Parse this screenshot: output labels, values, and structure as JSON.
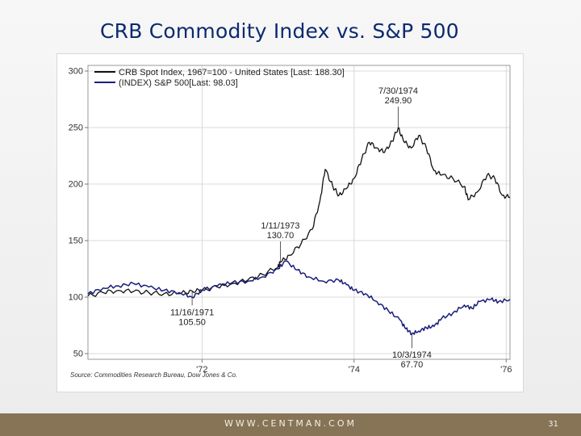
{
  "slide": {
    "title": "CRB Commodity Index vs. S&P 500",
    "footer_url": "WWW.CENTMAN.COM",
    "page_number": "31"
  },
  "colors": {
    "crb_line": "#111111",
    "sp500_line": "#1a1f7a",
    "title": "#0b2a6f",
    "footer_bar": "#877457"
  },
  "chart_data": {
    "type": "line",
    "x_ticks": [
      "'72",
      "'74",
      "'76"
    ],
    "x_tick_values": [
      1972.0,
      1974.0,
      1976.0
    ],
    "xlim": [
      1970.5,
      1976.05
    ],
    "ylim": [
      45,
      305
    ],
    "y_ticks": [
      50,
      100,
      150,
      200,
      250,
      300
    ],
    "grid": true,
    "legend_position": "top-left",
    "source": "Source: Commodities Research Bureau, Dow Jones & Co.",
    "series": [
      {
        "name": "CRB Spot Index, 1967=100 - United States [Last: 188.30]",
        "color": "#111111",
        "points": [
          [
            1970.5,
            101
          ],
          [
            1970.7,
            104
          ],
          [
            1970.9,
            106
          ],
          [
            1971.1,
            105
          ],
          [
            1971.3,
            104
          ],
          [
            1971.5,
            103
          ],
          [
            1971.7,
            103
          ],
          [
            1971.87,
            105.5
          ],
          [
            1972.0,
            106
          ],
          [
            1972.2,
            109
          ],
          [
            1972.4,
            112
          ],
          [
            1972.6,
            115
          ],
          [
            1972.8,
            120
          ],
          [
            1973.0,
            127
          ],
          [
            1973.03,
            130.7
          ],
          [
            1973.15,
            137
          ],
          [
            1973.3,
            147
          ],
          [
            1973.45,
            160
          ],
          [
            1973.55,
            185
          ],
          [
            1973.62,
            213
          ],
          [
            1973.72,
            198
          ],
          [
            1973.8,
            190
          ],
          [
            1973.9,
            196
          ],
          [
            1974.0,
            205
          ],
          [
            1974.1,
            222
          ],
          [
            1974.2,
            237
          ],
          [
            1974.3,
            232
          ],
          [
            1974.4,
            228
          ],
          [
            1974.5,
            238
          ],
          [
            1974.58,
            249.9
          ],
          [
            1974.65,
            238
          ],
          [
            1974.75,
            232
          ],
          [
            1974.85,
            243
          ],
          [
            1974.95,
            232
          ],
          [
            1975.05,
            212
          ],
          [
            1975.15,
            208
          ],
          [
            1975.3,
            205
          ],
          [
            1975.45,
            198
          ],
          [
            1975.5,
            186
          ],
          [
            1975.62,
            193
          ],
          [
            1975.75,
            208
          ],
          [
            1975.85,
            205
          ],
          [
            1975.95,
            190
          ],
          [
            1976.05,
            188.3
          ]
        ]
      },
      {
        "name": "(INDEX) S&P 500[Last: 98.03]",
        "color": "#1a1f7a",
        "points": [
          [
            1970.5,
            103
          ],
          [
            1970.7,
            108
          ],
          [
            1970.9,
            110
          ],
          [
            1971.1,
            112
          ],
          [
            1971.3,
            109
          ],
          [
            1971.5,
            106
          ],
          [
            1971.7,
            104
          ],
          [
            1971.87,
            100
          ],
          [
            1972.0,
            106
          ],
          [
            1972.2,
            110
          ],
          [
            1972.4,
            113
          ],
          [
            1972.6,
            114
          ],
          [
            1972.8,
            118
          ],
          [
            1973.0,
            125
          ],
          [
            1973.1,
            132
          ],
          [
            1973.25,
            124
          ],
          [
            1973.4,
            118
          ],
          [
            1973.6,
            114
          ],
          [
            1973.8,
            115
          ],
          [
            1973.9,
            111
          ],
          [
            1974.0,
            106
          ],
          [
            1974.15,
            103
          ],
          [
            1974.3,
            96
          ],
          [
            1974.45,
            88
          ],
          [
            1974.6,
            80
          ],
          [
            1974.68,
            72
          ],
          [
            1974.76,
            67.7
          ],
          [
            1974.85,
            70
          ],
          [
            1974.95,
            73
          ],
          [
            1975.05,
            74
          ],
          [
            1975.15,
            81
          ],
          [
            1975.3,
            86
          ],
          [
            1975.45,
            93
          ],
          [
            1975.55,
            90
          ],
          [
            1975.65,
            96
          ],
          [
            1975.8,
            98
          ],
          [
            1975.9,
            96
          ],
          [
            1976.05,
            98.03
          ]
        ]
      }
    ],
    "annotations": [
      {
        "date": "7/30/1974",
        "value": "249.90",
        "x": 1974.58,
        "y": 249.9,
        "label_pos": "above"
      },
      {
        "date": "1/11/1973",
        "value": "130.70",
        "x": 1973.03,
        "y": 130.7,
        "label_pos": "above"
      },
      {
        "date": "11/16/1971",
        "value": "105.50",
        "x": 1971.87,
        "y": 105.5,
        "label_pos": "below"
      },
      {
        "date": "10/3/1974",
        "value": "67.70",
        "x": 1974.76,
        "y": 67.7,
        "label_pos": "below"
      }
    ]
  }
}
